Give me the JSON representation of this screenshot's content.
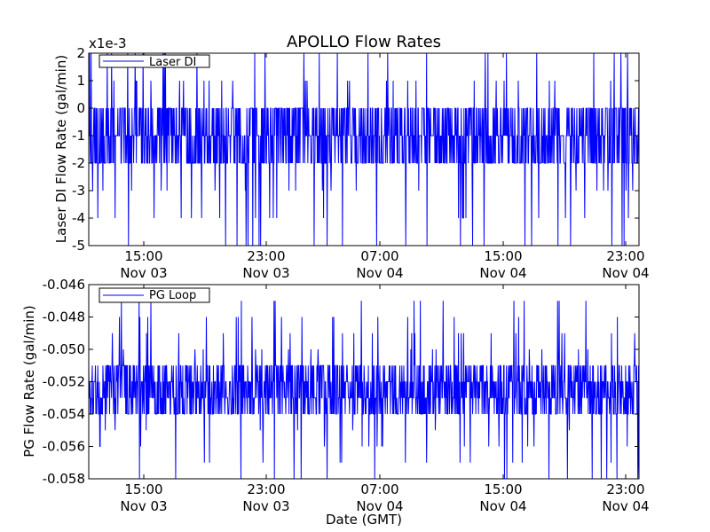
{
  "colors": {
    "series": "#0000ff",
    "axis": "#000000",
    "background": "#ffffff"
  },
  "chart_data": [
    {
      "type": "line",
      "title": "APOLLO Flow Rates",
      "ylabel": "Laser DI Flow Rate (gal/min)",
      "xlabel": "",
      "y_offset_label": "x1e-3",
      "ylim": [
        -0.005,
        0.002
      ],
      "yticks": [
        2,
        1,
        0,
        -1,
        -2,
        -3,
        -4,
        -5
      ],
      "xlim": [
        "Nov 03 12:30",
        "Nov 05 00:00"
      ],
      "xticks": [
        {
          "time": "15:00",
          "date": "Nov 03"
        },
        {
          "time": "23:00",
          "date": "Nov 03"
        },
        {
          "time": "07:00",
          "date": "Nov 04"
        },
        {
          "time": "15:00",
          "date": "Nov 04"
        },
        {
          "time": "23:00",
          "date": "Nov 04"
        }
      ],
      "legend": {
        "entries": [
          "Laser DI"
        ],
        "placement": "top-left"
      },
      "grid": false,
      "series": [
        {
          "name": "Laser DI",
          "levels": [
            0.002,
            0.001,
            0.0,
            -0.001,
            -0.002,
            -0.003,
            -0.004,
            -0.005
          ],
          "dominant_range": [
            -0.002,
            0.0
          ]
        }
      ]
    },
    {
      "type": "line",
      "title": "",
      "ylabel": "PG Flow Rate (gal/min)",
      "xlabel": "Date (GMT)",
      "ylim": [
        -0.058,
        -0.046
      ],
      "yticks": [
        "-0.046",
        "-0.048",
        "-0.050",
        "-0.052",
        "-0.054",
        "-0.056",
        "-0.058"
      ],
      "xlim": [
        "Nov 03 12:30",
        "Nov 05 00:00"
      ],
      "xticks": [
        {
          "time": "15:00",
          "date": "Nov 03"
        },
        {
          "time": "23:00",
          "date": "Nov 03"
        },
        {
          "time": "07:00",
          "date": "Nov 04"
        },
        {
          "time": "15:00",
          "date": "Nov 04"
        },
        {
          "time": "23:00",
          "date": "Nov 04"
        }
      ],
      "legend": {
        "entries": [
          "PG Loop"
        ],
        "placement": "top-left"
      },
      "grid": false,
      "series": [
        {
          "name": "PG Loop",
          "levels": [
            -0.047,
            -0.048,
            -0.049,
            -0.05,
            -0.051,
            -0.052,
            -0.053,
            -0.054,
            -0.055,
            -0.056,
            -0.057,
            -0.058
          ],
          "dominant_range": [
            -0.054,
            -0.051
          ]
        }
      ]
    }
  ]
}
